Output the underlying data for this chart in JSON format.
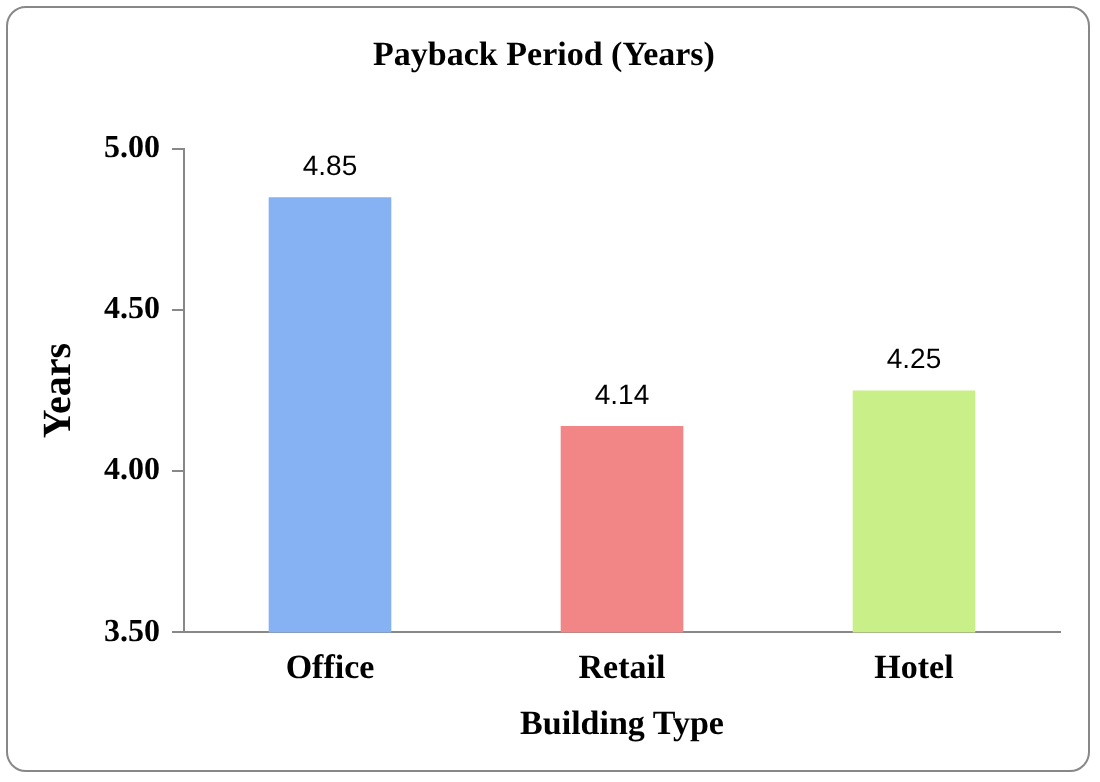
{
  "chart_data": {
    "type": "bar",
    "title": "Payback Period (Years)",
    "xlabel": "Building Type",
    "ylabel": "Years",
    "categories": [
      "Office",
      "Retail",
      "Hotel"
    ],
    "values": [
      4.85,
      4.14,
      4.25
    ],
    "colors": [
      "#86b2f4",
      "#f28686",
      "#c9f088"
    ],
    "ylim": [
      3.5,
      5.0
    ],
    "yticks": [
      {
        "value": 3.5,
        "label": "3.50"
      },
      {
        "value": 4.0,
        "label": "4.00"
      },
      {
        "value": 4.5,
        "label": "4.50"
      },
      {
        "value": 5.0,
        "label": "5.00"
      }
    ],
    "grid": false,
    "legend": false,
    "data_labels": true
  }
}
